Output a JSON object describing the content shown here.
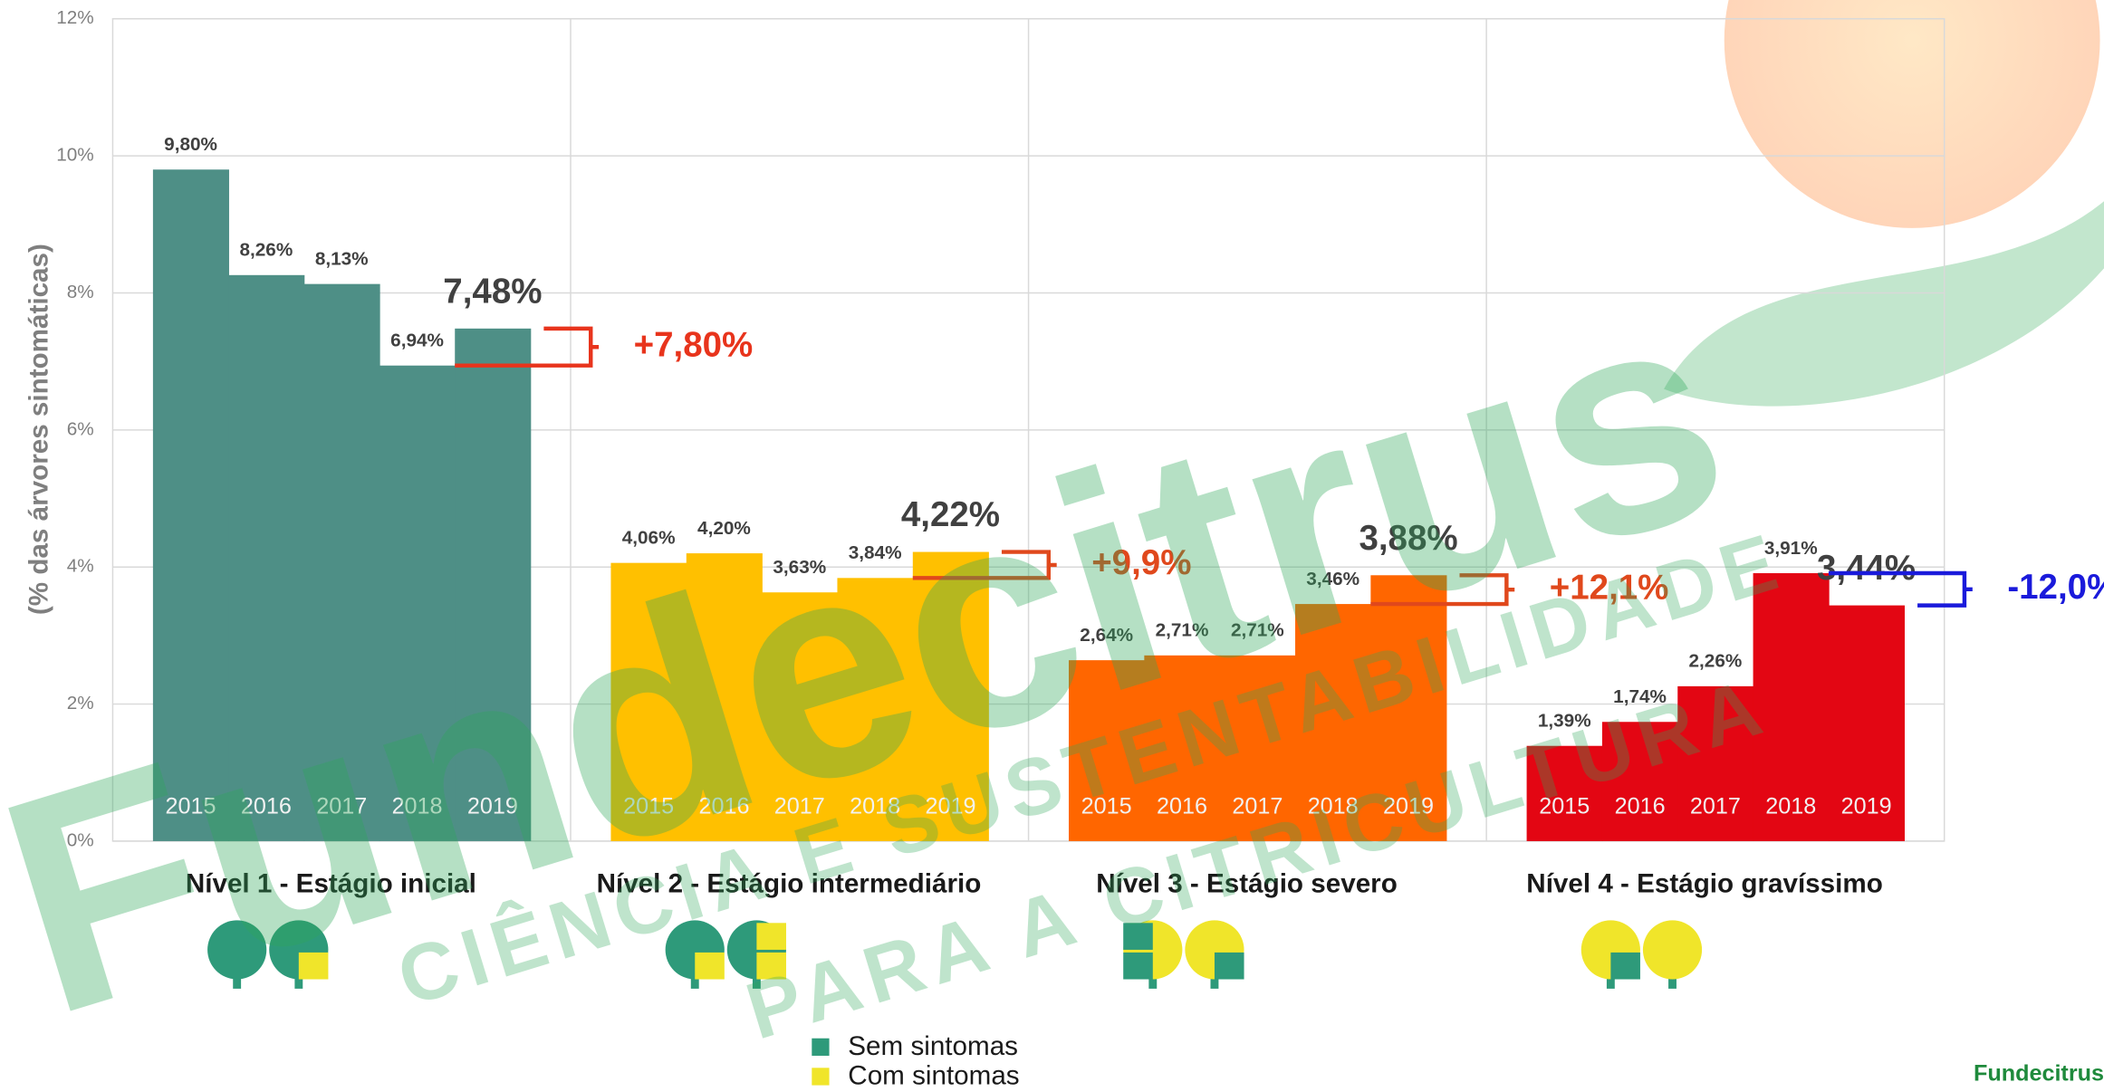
{
  "chart_data": {
    "type": "bar",
    "y_label": "(% das árvores sintomáticas)",
    "ylim": [
      0,
      12
    ],
    "yticks": [
      {
        "value": 0,
        "label": "0%"
      },
      {
        "value": 2,
        "label": "2%"
      },
      {
        "value": 4,
        "label": "4%"
      },
      {
        "value": 6,
        "label": "6%"
      },
      {
        "value": 8,
        "label": "8%"
      },
      {
        "value": 10,
        "label": "10%"
      },
      {
        "value": 12,
        "label": "12%"
      }
    ],
    "grid": true,
    "groups": [
      {
        "name": "Nível 1 - Estágio inicial",
        "color": "#4e8f86",
        "categories": [
          "2015",
          "2016",
          "2017",
          "2018",
          "2019"
        ],
        "values": [
          9.8,
          8.26,
          8.13,
          6.94,
          7.48
        ],
        "value_labels": [
          "9,80%",
          "8,26%",
          "8,13%",
          "6,94%",
          "7,48%"
        ],
        "change": "+7,80%",
        "change_color": "#e8341c"
      },
      {
        "name": "Nível 2 - Estágio intermediário",
        "color": "#ffc000",
        "categories": [
          "2015",
          "2016",
          "2017",
          "2018",
          "2019"
        ],
        "values": [
          4.06,
          4.2,
          3.63,
          3.84,
          4.22
        ],
        "value_labels": [
          "4,06%",
          "4,20%",
          "3,63%",
          "3,84%",
          "4,22%"
        ],
        "change": "+9,9%",
        "change_color": "#e0481c"
      },
      {
        "name": "Nível 3 - Estágio severo",
        "color": "#ff6600",
        "categories": [
          "2015",
          "2016",
          "2017",
          "2018",
          "2019"
        ],
        "values": [
          2.64,
          2.71,
          2.71,
          3.46,
          3.88
        ],
        "value_labels": [
          "2,64%",
          "2,71%",
          "2,71%",
          "3,46%",
          "3,88%"
        ],
        "change": "+12,1%",
        "change_color": "#e0481c"
      },
      {
        "name": "Nível 4 - Estágio gravíssimo",
        "color": "#e30613",
        "categories": [
          "2015",
          "2016",
          "2017",
          "2018",
          "2019"
        ],
        "values": [
          1.39,
          1.74,
          2.26,
          3.91,
          3.44
        ],
        "value_labels": [
          "1,39%",
          "1,74%",
          "2,26%",
          "3,91%",
          "3,44%"
        ],
        "change": "-12,0%",
        "change_color": "#1a1adb"
      }
    ],
    "legend": [
      {
        "name": "Sem sintomas",
        "color": "#2e9a7a"
      },
      {
        "name": "Com sintomas",
        "color": "#f0e52a"
      }
    ]
  },
  "watermark": {
    "brand": "Fundecitrus",
    "slogan_1": "CIÊNCIA E SUSTENTABILIDADE",
    "slogan_2": "PARA A CITRICULTURA"
  },
  "logo": "Fundecitrus"
}
